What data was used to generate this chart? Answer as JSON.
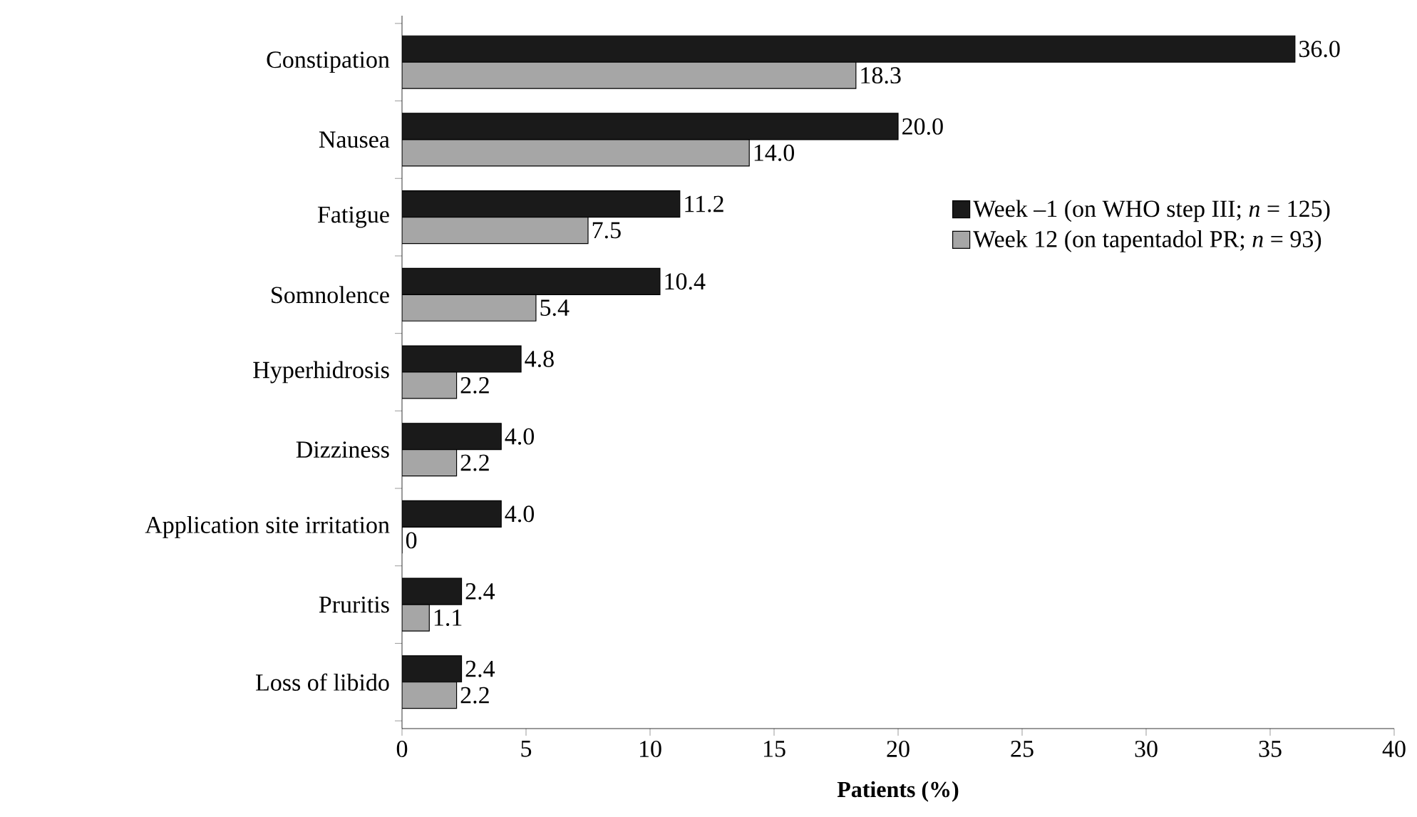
{
  "chart_data": {
    "type": "bar",
    "orientation": "horizontal",
    "xlabel": "**Patients (%)**",
    "categories": [
      "Constipation",
      "Nausea",
      "Fatigue",
      "Somnolence",
      "Hyperhidrosis",
      "Dizziness",
      "Application site irritation",
      "Pruritis",
      "Loss of libido"
    ],
    "series": [
      {
        "name": "Week –1 (on WHO step III; *n* = 125)",
        "color": "#1a1a1a",
        "values": [
          36.0,
          20.0,
          11.2,
          10.4,
          4.8,
          4.0,
          4.0,
          2.4,
          2.4
        ],
        "value_labels": [
          "36.0",
          "20.0",
          "11.2",
          "10.4",
          "4.8",
          "4.0",
          "4.0",
          "2.4",
          "2.4"
        ]
      },
      {
        "name": "Week 12 (on tapentadol PR; *n* = 93)",
        "color": "#a6a6a6",
        "values": [
          18.3,
          14.0,
          7.5,
          5.4,
          2.2,
          2.2,
          0,
          1.1,
          2.2
        ],
        "value_labels": [
          "18.3",
          "14.0",
          "7.5",
          "5.4",
          "2.2",
          "2.2",
          "0",
          "1.1",
          "2.2"
        ]
      }
    ],
    "xlim": [
      0,
      40
    ],
    "xticks": [
      0,
      5,
      10,
      15,
      20,
      25,
      30,
      35,
      40
    ],
    "legend": "right",
    "grid": false
  }
}
